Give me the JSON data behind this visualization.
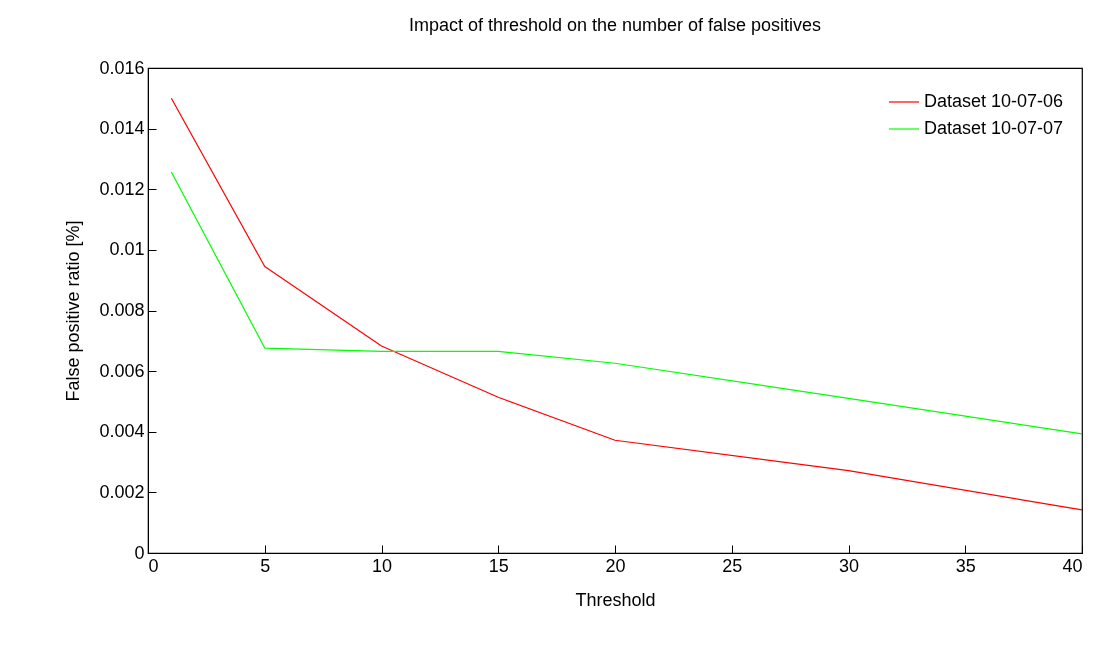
{
  "chart_data": {
    "type": "line",
    "title": "Impact of threshold on the number of false positives",
    "xlabel": "Threshold",
    "ylabel": "False positive ratio [%]",
    "x": [
      1,
      5,
      10,
      15,
      20,
      30,
      40
    ],
    "series": [
      {
        "name": "Dataset 10-07-06",
        "color": "#ff0000",
        "values": [
          0.015,
          0.00945,
          0.00683,
          0.00514,
          0.00372,
          0.00272,
          0.00142
        ]
      },
      {
        "name": "Dataset 10-07-07",
        "color": "#00ff00",
        "values": [
          0.01257,
          0.00676,
          0.00665,
          0.00665,
          0.00626,
          0.0051,
          0.00393
        ]
      }
    ],
    "xlim": [
      0,
      40
    ],
    "xticks": [
      0,
      5,
      10,
      15,
      20,
      25,
      30,
      35,
      40
    ],
    "ylim": [
      0,
      0.016
    ],
    "yticks": [
      0,
      0.002,
      0.004,
      0.006,
      0.008,
      0.01,
      0.012,
      0.014,
      0.016
    ],
    "grid": false,
    "legend": "top right",
    "marker": "none",
    "line_style": "solid"
  }
}
